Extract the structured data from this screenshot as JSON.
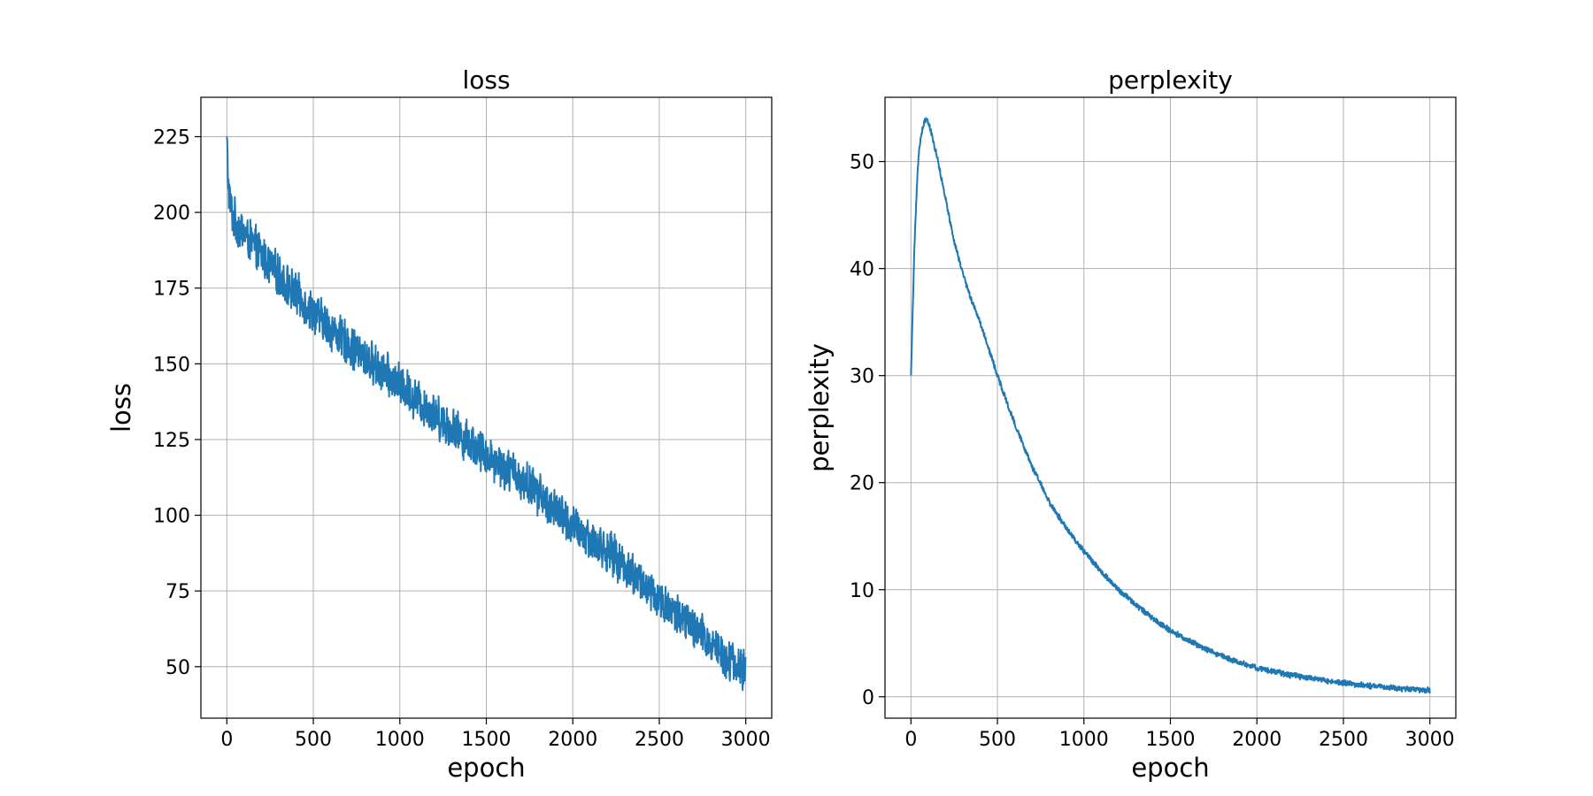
{
  "chart_data": [
    {
      "type": "line",
      "title": "loss",
      "xlabel": "epoch",
      "ylabel": "loss",
      "xlim": [
        -150,
        3150
      ],
      "ylim": [
        33,
        238
      ],
      "xticks": [
        0,
        500,
        1000,
        1500,
        2000,
        2500,
        3000
      ],
      "yticks": [
        50,
        75,
        100,
        125,
        150,
        175,
        200,
        225
      ],
      "grid": true,
      "color": "#1f77b4",
      "noise_amplitude": 8,
      "series": [
        {
          "x": [
            0,
            5,
            10,
            20,
            40,
            60,
            100,
            200,
            300,
            500,
            750,
            1000,
            1250,
            1500,
            1750,
            2000,
            2250,
            2500,
            2750,
            3000
          ],
          "y": [
            225,
            215,
            208,
            202,
            198,
            196,
            193,
            186,
            179,
            167,
            154,
            143,
            131,
            120,
            110,
            96,
            86,
            72,
            60,
            48
          ]
        }
      ]
    },
    {
      "type": "line",
      "title": "perplexity",
      "xlabel": "epoch",
      "ylabel": "perplexity",
      "xlim": [
        -150,
        3150
      ],
      "ylim": [
        -2,
        56
      ],
      "xticks": [
        0,
        500,
        1000,
        1500,
        2000,
        2500,
        3000
      ],
      "yticks": [
        0,
        10,
        20,
        30,
        40,
        50
      ],
      "grid": true,
      "color": "#1f77b4",
      "noise_amplitude": 0.3,
      "series": [
        {
          "x": [
            0,
            10,
            20,
            30,
            40,
            50,
            60,
            70,
            80,
            90,
            100,
            150,
            200,
            250,
            300,
            350,
            400,
            450,
            500,
            600,
            700,
            800,
            900,
            1000,
            1100,
            1200,
            1300,
            1400,
            1500,
            1600,
            1700,
            1800,
            1900,
            2000,
            2200,
            2400,
            2600,
            2800,
            3000
          ],
          "y": [
            30,
            36,
            42,
            46,
            49.5,
            51.5,
            52.5,
            53.3,
            53.8,
            54.1,
            53.8,
            50.5,
            46.5,
            42.5,
            39.5,
            37,
            35,
            32.5,
            30,
            25.5,
            21.5,
            18.2,
            15.7,
            13.6,
            11.7,
            10,
            8.6,
            7.3,
            6.2,
            5.3,
            4.5,
            3.8,
            3.2,
            2.7,
            2,
            1.5,
            1.1,
            0.8,
            0.6
          ]
        }
      ]
    }
  ]
}
